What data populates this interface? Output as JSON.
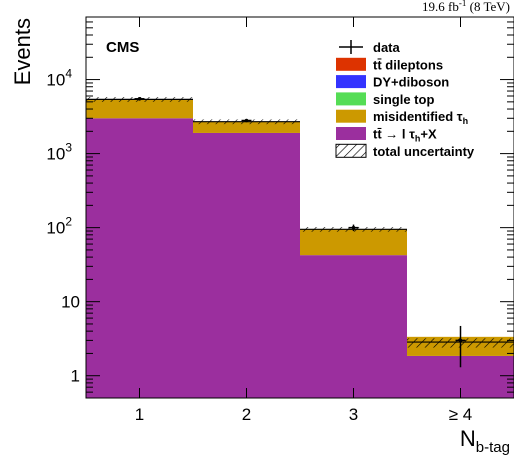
{
  "chart_data": {
    "type": "bar",
    "stacked": true,
    "log_y": true,
    "header_right": "19.6 fb",
    "header_sup": "-1",
    "header_energy": "(8 TeV)",
    "label": "CMS",
    "ylabel": "Events",
    "xlabel_main": "N",
    "xlabel_sub": "b-tag",
    "ylim": [
      0.5,
      70000
    ],
    "categories": [
      "1",
      "2",
      "3",
      "≥ 4"
    ],
    "y_ticks": [
      {
        "value": 1,
        "label": "1"
      },
      {
        "value": 10,
        "label": "10"
      },
      {
        "value": 100,
        "label": "10",
        "sup": "2"
      },
      {
        "value": 1000,
        "label": "10",
        "sup": "3"
      },
      {
        "value": 10000,
        "label": "10",
        "sup": "4"
      }
    ],
    "series": [
      {
        "name": "tt̄ → l τh+X",
        "color": "#9b2f9e",
        "values": [
          3000,
          1900,
          42,
          1.35
        ]
      },
      {
        "name": "misidentified τh",
        "color": "#cc9900",
        "values": [
          2400,
          800,
          53,
          1.5
        ]
      },
      {
        "name": "single top",
        "color": "#55dd55",
        "values": [
          0,
          0,
          0,
          0
        ]
      },
      {
        "name": "DY+diboson",
        "color": "#3333ff",
        "values": [
          0,
          0,
          0,
          0
        ]
      },
      {
        "name": "tt̄ dileptons",
        "color": "#dd3300",
        "values": [
          0,
          0,
          0,
          0
        ]
      }
    ],
    "total": [
      5400,
      2700,
      95,
      2.85
    ],
    "uncertainty": [
      [
        5000,
        5800
      ],
      [
        2500,
        2900
      ],
      [
        88,
        102
      ],
      [
        2.4,
        3.2
      ]
    ],
    "data": {
      "values": [
        5500,
        2800,
        100,
        3
      ],
      "errors_low": [
        75,
        53,
        10,
        1.7
      ],
      "errors_high": [
        75,
        53,
        10,
        1.7
      ]
    },
    "legend": [
      {
        "key": "data",
        "text": "data",
        "kind": "marker"
      },
      {
        "key": "dilep",
        "text": "tt̄ dileptons",
        "kind": "box",
        "color": "#dd3300"
      },
      {
        "key": "dy",
        "text": "DY+diboson",
        "kind": "box",
        "color": "#3333ff"
      },
      {
        "key": "stop",
        "text": "single top",
        "kind": "box",
        "color": "#55dd55"
      },
      {
        "key": "misid",
        "text": "misidentified τ",
        "sub": "h",
        "kind": "box",
        "color": "#cc9900"
      },
      {
        "key": "ttlep",
        "text": "tt̄ → l τ",
        "sub": "h",
        "suffix": "+X",
        "kind": "box",
        "color": "#9b2f9e"
      },
      {
        "key": "unc",
        "text": "total uncertainty",
        "kind": "hatch"
      }
    ],
    "legend_position": "top-right",
    "grid": false
  }
}
